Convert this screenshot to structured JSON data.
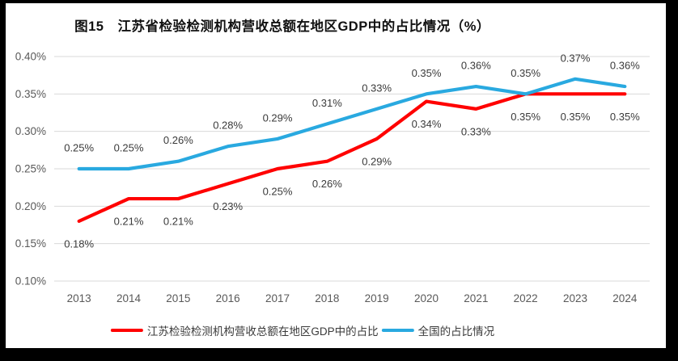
{
  "frame": {
    "background_color": "#000000",
    "page_color": "#FFFFFF"
  },
  "chart_data": {
    "type": "line",
    "title": "图15　江苏省检验检测机构营收总额在地区GDP中的占比情况（%）",
    "categories": [
      "2013",
      "2014",
      "2015",
      "2016",
      "2017",
      "2018",
      "2019",
      "2020",
      "2021",
      "2022",
      "2023",
      "2024"
    ],
    "series": [
      {
        "key": "jiangsu",
        "name": "江苏检验检测机构营收总额在地区GDP中的占比",
        "color": "#FF0000",
        "label_side": "below",
        "values": [
          0.18,
          0.21,
          0.21,
          0.23,
          0.25,
          0.26,
          0.29,
          0.34,
          0.33,
          0.35,
          0.35,
          0.35
        ]
      },
      {
        "key": "national",
        "name": "全国的占比情况",
        "color": "#29A9E0",
        "label_side": "above",
        "values": [
          0.25,
          0.25,
          0.26,
          0.28,
          0.29,
          0.31,
          0.33,
          0.35,
          0.36,
          0.35,
          0.37,
          0.36
        ]
      }
    ],
    "ylim": [
      0.1,
      0.4
    ],
    "yticks": [
      0.1,
      0.15,
      0.2,
      0.25,
      0.3,
      0.35,
      0.4
    ],
    "y_tick_format": "0.00%",
    "data_label_format": "0.00%",
    "grid": "horizontal",
    "legend_position": "bottom",
    "colors": {
      "gridline": "#D9D9D9",
      "axis_text": "#595959",
      "data_label_text": "#3A3A3A",
      "title_text": "#111111"
    }
  }
}
